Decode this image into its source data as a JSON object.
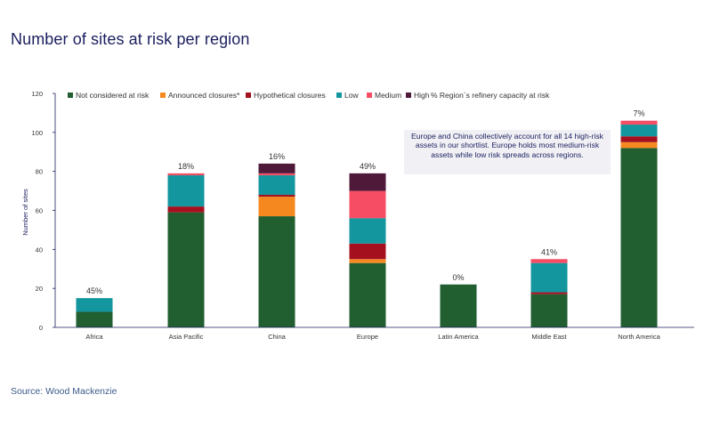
{
  "title": "Number of sites at risk per region",
  "source": "Source: Wood Mackenzie",
  "chart_data": {
    "type": "bar",
    "stacked": true,
    "categories": [
      "Africa",
      "Asia Pacific",
      "China",
      "Europe",
      "Latin America",
      "Middle East",
      "North America"
    ],
    "series": [
      {
        "name": "Not considered at risk",
        "color": "#215e30",
        "values": [
          8,
          59,
          57,
          33,
          22,
          17,
          92
        ]
      },
      {
        "name": "Announced closures*",
        "color": "#f5891f",
        "values": [
          0,
          0,
          10,
          2,
          0,
          0,
          3
        ]
      },
      {
        "name": "Hypothetical closures",
        "color": "#a4101e",
        "values": [
          0,
          3,
          1,
          8,
          0,
          1,
          3
        ]
      },
      {
        "name": "Low",
        "color": "#13969e",
        "values": [
          7,
          16,
          10,
          13,
          0,
          15,
          6
        ]
      },
      {
        "name": "Medium",
        "color": "#f64d64",
        "values": [
          0,
          1,
          1,
          14,
          0,
          2,
          2
        ]
      },
      {
        "name": "High",
        "color": "#4f1a3a",
        "values": [
          0,
          0,
          5,
          9,
          0,
          0,
          0
        ]
      }
    ],
    "legend_extra": "% Region´s refinery capacity at risk",
    "percent_labels": [
      "45%",
      "18%",
      "16%",
      "49%",
      "0%",
      "41%",
      "7%"
    ],
    "ylabel": "Number of sites",
    "xlabel": "",
    "ylim": [
      0,
      120
    ],
    "yticks": [
      0,
      20,
      40,
      60,
      80,
      100,
      120
    ],
    "annotation": "Europe and China collectively account for all 14 high-risk assets in our shortlist. Europe holds most medium-risk assets while low risk spreads across regions."
  }
}
